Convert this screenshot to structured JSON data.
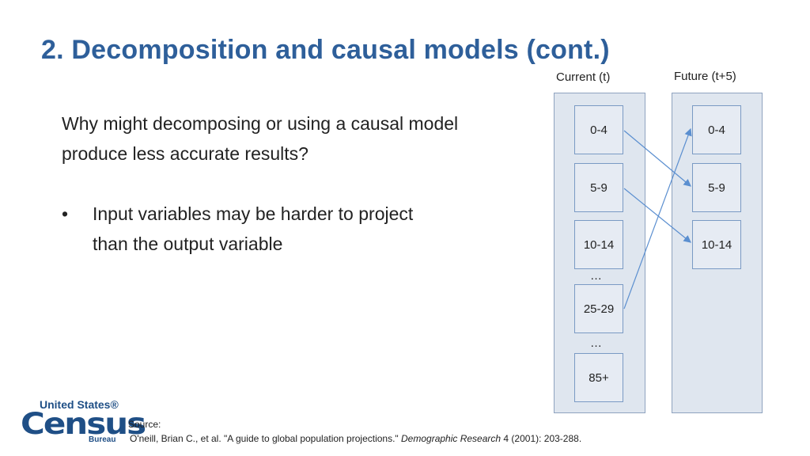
{
  "slide": {
    "title": "2. Decomposition and causal models (cont.)",
    "question": "Why might decomposing or using a causal model produce less accurate results?",
    "bullet_marker": "•",
    "bullet": "Input variables may be harder to project than the output variable"
  },
  "diagram": {
    "current": {
      "header": "Current (t)",
      "boxes": [
        "0-4",
        "5-9",
        "10-14",
        "25-29",
        "85+"
      ],
      "ellipses": [
        "…",
        "…"
      ]
    },
    "future": {
      "header": "Future (t+5)",
      "boxes": [
        "0-4",
        "5-9",
        "10-14"
      ]
    },
    "arrow_color": "#5b8fd0",
    "arrows": [
      {
        "from": "current:0-4",
        "to": "future:5-9"
      },
      {
        "from": "current:5-9",
        "to": "future:10-14"
      },
      {
        "from": "current:25-29",
        "to": "future:0-4"
      }
    ]
  },
  "footer": {
    "logo": {
      "line1": "United States®",
      "line2": "Census",
      "line3": "Bureau"
    },
    "source_label": "Source:",
    "source_before": "O'neill, Brian C., et al. \"A guide to global population projections.\" ",
    "source_journal": "Demographic Research",
    "source_after": " 4 (2001): 203-288."
  }
}
